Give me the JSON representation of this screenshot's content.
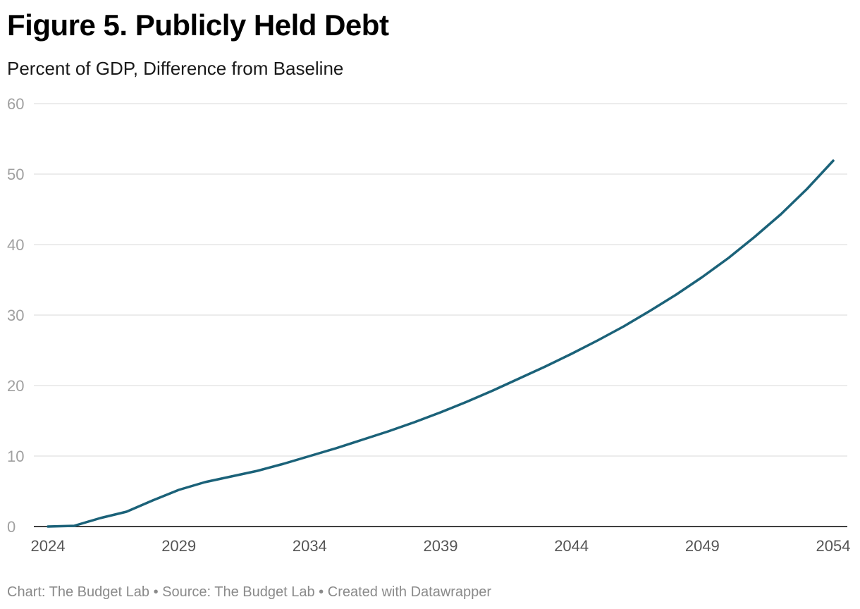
{
  "title": "Figure 5. Publicly Held Debt",
  "subtitle": "Percent of GDP, Difference from Baseline",
  "footer": {
    "chart_credit": "Chart: The Budget Lab",
    "separator": "•",
    "source": "Source: The Budget Lab",
    "created_with": "Created with Datawrapper"
  },
  "colors": {
    "line": "#1b6279",
    "grid": "#e0e0e0",
    "axis": "#000000"
  },
  "chart_data": {
    "type": "line",
    "title": "Figure 5. Publicly Held Debt",
    "subtitle": "Percent of GDP, Difference from Baseline",
    "xlabel": "",
    "ylabel": "",
    "xlim": [
      2024,
      2054
    ],
    "ylim": [
      0,
      60
    ],
    "grid": true,
    "yticks": [
      0,
      10,
      20,
      30,
      40,
      50,
      60
    ],
    "xticks": [
      2024,
      2029,
      2034,
      2039,
      2044,
      2049,
      2054
    ],
    "series": [
      {
        "name": "Publicly Held Debt",
        "x": [
          2024,
          2025,
          2026,
          2027,
          2028,
          2029,
          2030,
          2031,
          2032,
          2033,
          2034,
          2035,
          2036,
          2037,
          2038,
          2039,
          2040,
          2041,
          2042,
          2043,
          2044,
          2045,
          2046,
          2047,
          2048,
          2049,
          2050,
          2051,
          2052,
          2053,
          2054
        ],
        "values": [
          0,
          0.1,
          1.2,
          2.1,
          3.7,
          5.2,
          6.3,
          7.1,
          7.9,
          8.9,
          10.0,
          11.1,
          12.3,
          13.5,
          14.8,
          16.2,
          17.7,
          19.3,
          21.0,
          22.7,
          24.5,
          26.4,
          28.4,
          30.6,
          32.9,
          35.4,
          38.1,
          41.1,
          44.3,
          47.9,
          51.9
        ]
      }
    ]
  }
}
